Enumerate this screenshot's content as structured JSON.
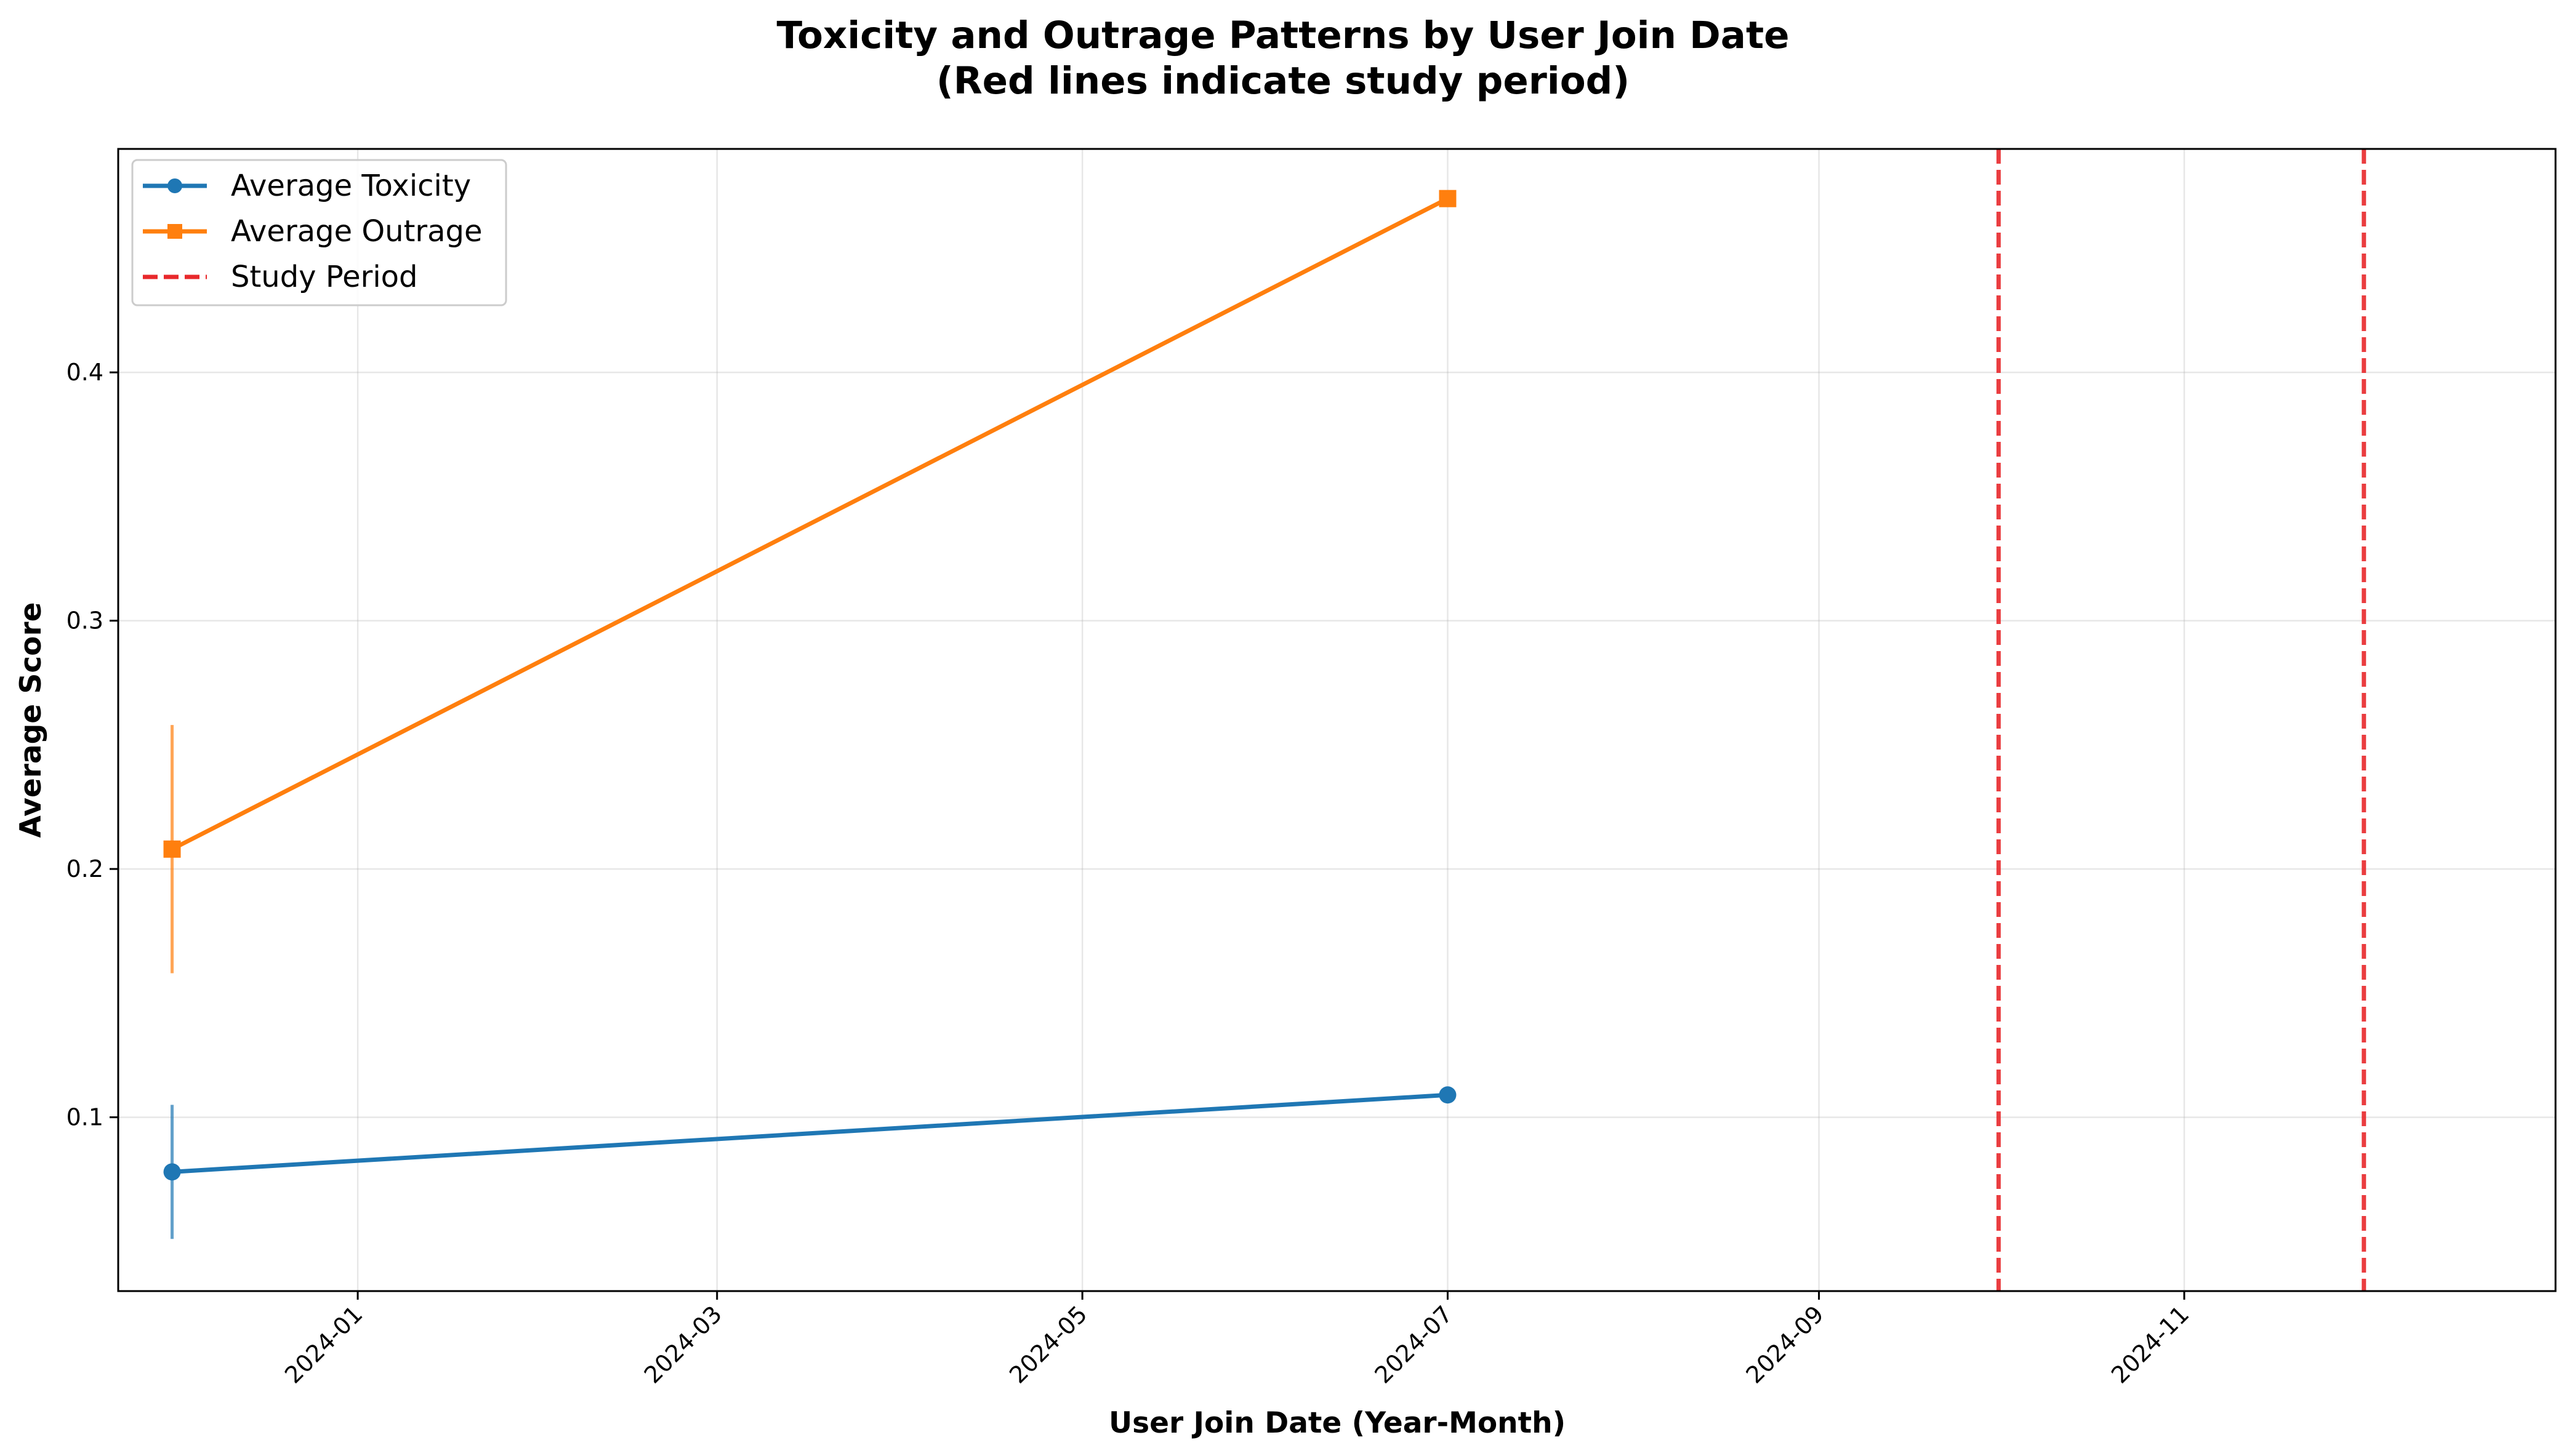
{
  "chart_data": {
    "type": "line",
    "title_line1": "Toxicity and Outrage Patterns by User Join Date",
    "title_line2": "(Red lines indicate study period)",
    "xlabel": "User Join Date (Year-Month)",
    "ylabel": "Average Score",
    "xlim": [
      "2023-11-22",
      "2025-01-02"
    ],
    "ylim": [
      0.03,
      0.49
    ],
    "x_ticks": [
      "2024-01",
      "2024-03",
      "2024-05",
      "2024-07",
      "2024-09",
      "2024-11"
    ],
    "y_ticks": [
      0.1,
      0.2,
      0.3,
      0.4
    ],
    "grid": true,
    "legend_position": "upper-left",
    "series": [
      {
        "name": "Average Toxicity",
        "color": "#1f77b4",
        "marker": "circle",
        "x": [
          "2023-12-01",
          "2024-07-01"
        ],
        "values": [
          0.078,
          0.109
        ],
        "error": [
          0.027,
          0.0
        ]
      },
      {
        "name": "Average Outrage",
        "color": "#ff7f0e",
        "marker": "square",
        "x": [
          "2023-12-01",
          "2024-07-01"
        ],
        "values": [
          0.208,
          0.47
        ],
        "error": [
          0.05,
          0.0
        ]
      }
    ],
    "reference_lines": {
      "name": "Study Period",
      "color": "#e8282b",
      "style": "dashed",
      "x": [
        "2024-10-01",
        "2024-12-01"
      ]
    }
  }
}
